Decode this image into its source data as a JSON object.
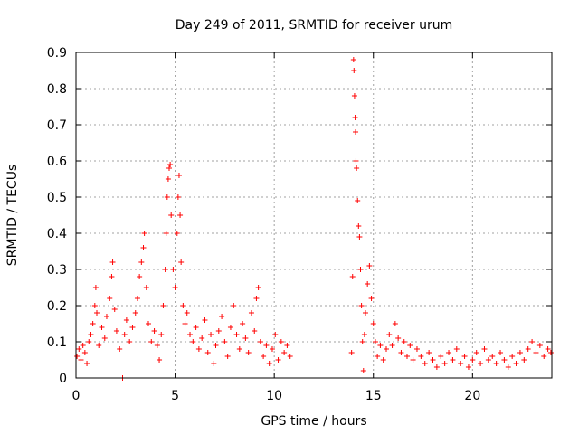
{
  "chart_data": {
    "type": "scatter",
    "title": "Day 249 of 2011, SRMTID for receiver urum",
    "xlabel": "GPS time / hours",
    "ylabel": "SRMTID / TECUs",
    "xlim": [
      0,
      24
    ],
    "ylim": [
      0,
      0.9
    ],
    "xticks": [
      0,
      5,
      10,
      15,
      20
    ],
    "yticks": [
      0,
      0.1,
      0.2,
      0.3,
      0.4,
      0.5,
      0.6,
      0.7,
      0.8,
      0.9
    ],
    "xtick_labels": [
      "0",
      "5",
      "10",
      "15",
      "20"
    ],
    "ytick_labels": [
      "0",
      "0.1",
      "0.2",
      "0.3",
      "0.4",
      "0.5",
      "0.6",
      "0.7",
      "0.8",
      "0.9"
    ],
    "grid": true,
    "marker": "+",
    "colors": {
      "points": "#ff0000",
      "grid": "#a0a0a0",
      "axis": "#000000"
    },
    "series": [
      {
        "name": "SRMTID",
        "points": [
          [
            0.05,
            0.06
          ],
          [
            0.15,
            0.08
          ],
          [
            0.25,
            0.05
          ],
          [
            0.35,
            0.09
          ],
          [
            0.45,
            0.07
          ],
          [
            0.55,
            0.04
          ],
          [
            0.65,
            0.1
          ],
          [
            0.75,
            0.12
          ],
          [
            0.85,
            0.15
          ],
          [
            0.95,
            0.2
          ],
          [
            1.0,
            0.25
          ],
          [
            1.05,
            0.18
          ],
          [
            1.15,
            0.09
          ],
          [
            1.3,
            0.14
          ],
          [
            1.45,
            0.11
          ],
          [
            1.55,
            0.17
          ],
          [
            1.7,
            0.22
          ],
          [
            1.8,
            0.28
          ],
          [
            1.85,
            0.32
          ],
          [
            1.95,
            0.19
          ],
          [
            2.05,
            0.13
          ],
          [
            2.2,
            0.08
          ],
          [
            2.35,
            0.0
          ],
          [
            2.45,
            0.12
          ],
          [
            2.55,
            0.16
          ],
          [
            2.7,
            0.1
          ],
          [
            2.85,
            0.14
          ],
          [
            3.0,
            0.18
          ],
          [
            3.1,
            0.22
          ],
          [
            3.2,
            0.28
          ],
          [
            3.3,
            0.32
          ],
          [
            3.4,
            0.36
          ],
          [
            3.45,
            0.4
          ],
          [
            3.55,
            0.25
          ],
          [
            3.65,
            0.15
          ],
          [
            3.8,
            0.1
          ],
          [
            3.95,
            0.13
          ],
          [
            4.1,
            0.09
          ],
          [
            4.2,
            0.05
          ],
          [
            4.3,
            0.12
          ],
          [
            4.4,
            0.2
          ],
          [
            4.5,
            0.3
          ],
          [
            4.55,
            0.4
          ],
          [
            4.6,
            0.5
          ],
          [
            4.65,
            0.55
          ],
          [
            4.7,
            0.58
          ],
          [
            4.75,
            0.59
          ],
          [
            4.8,
            0.45
          ],
          [
            4.9,
            0.3
          ],
          [
            5.0,
            0.25
          ],
          [
            5.1,
            0.4
          ],
          [
            5.15,
            0.5
          ],
          [
            5.2,
            0.56
          ],
          [
            5.25,
            0.45
          ],
          [
            5.3,
            0.32
          ],
          [
            5.4,
            0.2
          ],
          [
            5.5,
            0.15
          ],
          [
            5.6,
            0.18
          ],
          [
            5.75,
            0.12
          ],
          [
            5.9,
            0.1
          ],
          [
            6.05,
            0.14
          ],
          [
            6.2,
            0.08
          ],
          [
            6.35,
            0.11
          ],
          [
            6.5,
            0.16
          ],
          [
            6.65,
            0.07
          ],
          [
            6.8,
            0.12
          ],
          [
            6.95,
            0.04
          ],
          [
            7.05,
            0.09
          ],
          [
            7.2,
            0.13
          ],
          [
            7.35,
            0.17
          ],
          [
            7.5,
            0.1
          ],
          [
            7.65,
            0.06
          ],
          [
            7.8,
            0.14
          ],
          [
            7.95,
            0.2
          ],
          [
            8.1,
            0.12
          ],
          [
            8.25,
            0.08
          ],
          [
            8.4,
            0.15
          ],
          [
            8.55,
            0.11
          ],
          [
            8.7,
            0.07
          ],
          [
            8.85,
            0.18
          ],
          [
            9.0,
            0.13
          ],
          [
            9.1,
            0.22
          ],
          [
            9.2,
            0.25
          ],
          [
            9.3,
            0.1
          ],
          [
            9.45,
            0.06
          ],
          [
            9.6,
            0.09
          ],
          [
            9.75,
            0.04
          ],
          [
            9.9,
            0.08
          ],
          [
            10.05,
            0.12
          ],
          [
            10.2,
            0.05
          ],
          [
            10.35,
            0.1
          ],
          [
            10.5,
            0.07
          ],
          [
            10.65,
            0.09
          ],
          [
            10.8,
            0.06
          ],
          [
            13.9,
            0.07
          ],
          [
            13.95,
            0.28
          ],
          [
            14.0,
            0.88
          ],
          [
            14.02,
            0.85
          ],
          [
            14.05,
            0.78
          ],
          [
            14.08,
            0.72
          ],
          [
            14.1,
            0.68
          ],
          [
            14.12,
            0.6
          ],
          [
            14.15,
            0.58
          ],
          [
            14.2,
            0.49
          ],
          [
            14.25,
            0.42
          ],
          [
            14.3,
            0.39
          ],
          [
            14.35,
            0.3
          ],
          [
            14.4,
            0.2
          ],
          [
            14.45,
            0.1
          ],
          [
            14.5,
            0.02
          ],
          [
            14.55,
            0.12
          ],
          [
            14.6,
            0.18
          ],
          [
            14.7,
            0.26
          ],
          [
            14.8,
            0.31
          ],
          [
            14.9,
            0.22
          ],
          [
            15.0,
            0.15
          ],
          [
            15.1,
            0.1
          ],
          [
            15.2,
            0.06
          ],
          [
            15.35,
            0.09
          ],
          [
            15.5,
            0.05
          ],
          [
            15.65,
            0.08
          ],
          [
            15.8,
            0.12
          ],
          [
            15.95,
            0.09
          ],
          [
            16.1,
            0.15
          ],
          [
            16.25,
            0.11
          ],
          [
            16.4,
            0.07
          ],
          [
            16.55,
            0.1
          ],
          [
            16.7,
            0.06
          ],
          [
            16.85,
            0.09
          ],
          [
            17.0,
            0.05
          ],
          [
            17.2,
            0.08
          ],
          [
            17.4,
            0.06
          ],
          [
            17.6,
            0.04
          ],
          [
            17.8,
            0.07
          ],
          [
            18.0,
            0.05
          ],
          [
            18.2,
            0.03
          ],
          [
            18.4,
            0.06
          ],
          [
            18.6,
            0.04
          ],
          [
            18.8,
            0.07
          ],
          [
            19.0,
            0.05
          ],
          [
            19.2,
            0.08
          ],
          [
            19.4,
            0.04
          ],
          [
            19.6,
            0.06
          ],
          [
            19.8,
            0.03
          ],
          [
            20.0,
            0.05
          ],
          [
            20.2,
            0.07
          ],
          [
            20.4,
            0.04
          ],
          [
            20.6,
            0.08
          ],
          [
            20.8,
            0.05
          ],
          [
            21.0,
            0.06
          ],
          [
            21.2,
            0.04
          ],
          [
            21.4,
            0.07
          ],
          [
            21.6,
            0.05
          ],
          [
            21.8,
            0.03
          ],
          [
            22.0,
            0.06
          ],
          [
            22.2,
            0.04
          ],
          [
            22.4,
            0.07
          ],
          [
            22.6,
            0.05
          ],
          [
            22.8,
            0.08
          ],
          [
            23.0,
            0.1
          ],
          [
            23.2,
            0.07
          ],
          [
            23.4,
            0.09
          ],
          [
            23.6,
            0.06
          ],
          [
            23.8,
            0.08
          ],
          [
            23.95,
            0.07
          ]
        ]
      }
    ]
  }
}
